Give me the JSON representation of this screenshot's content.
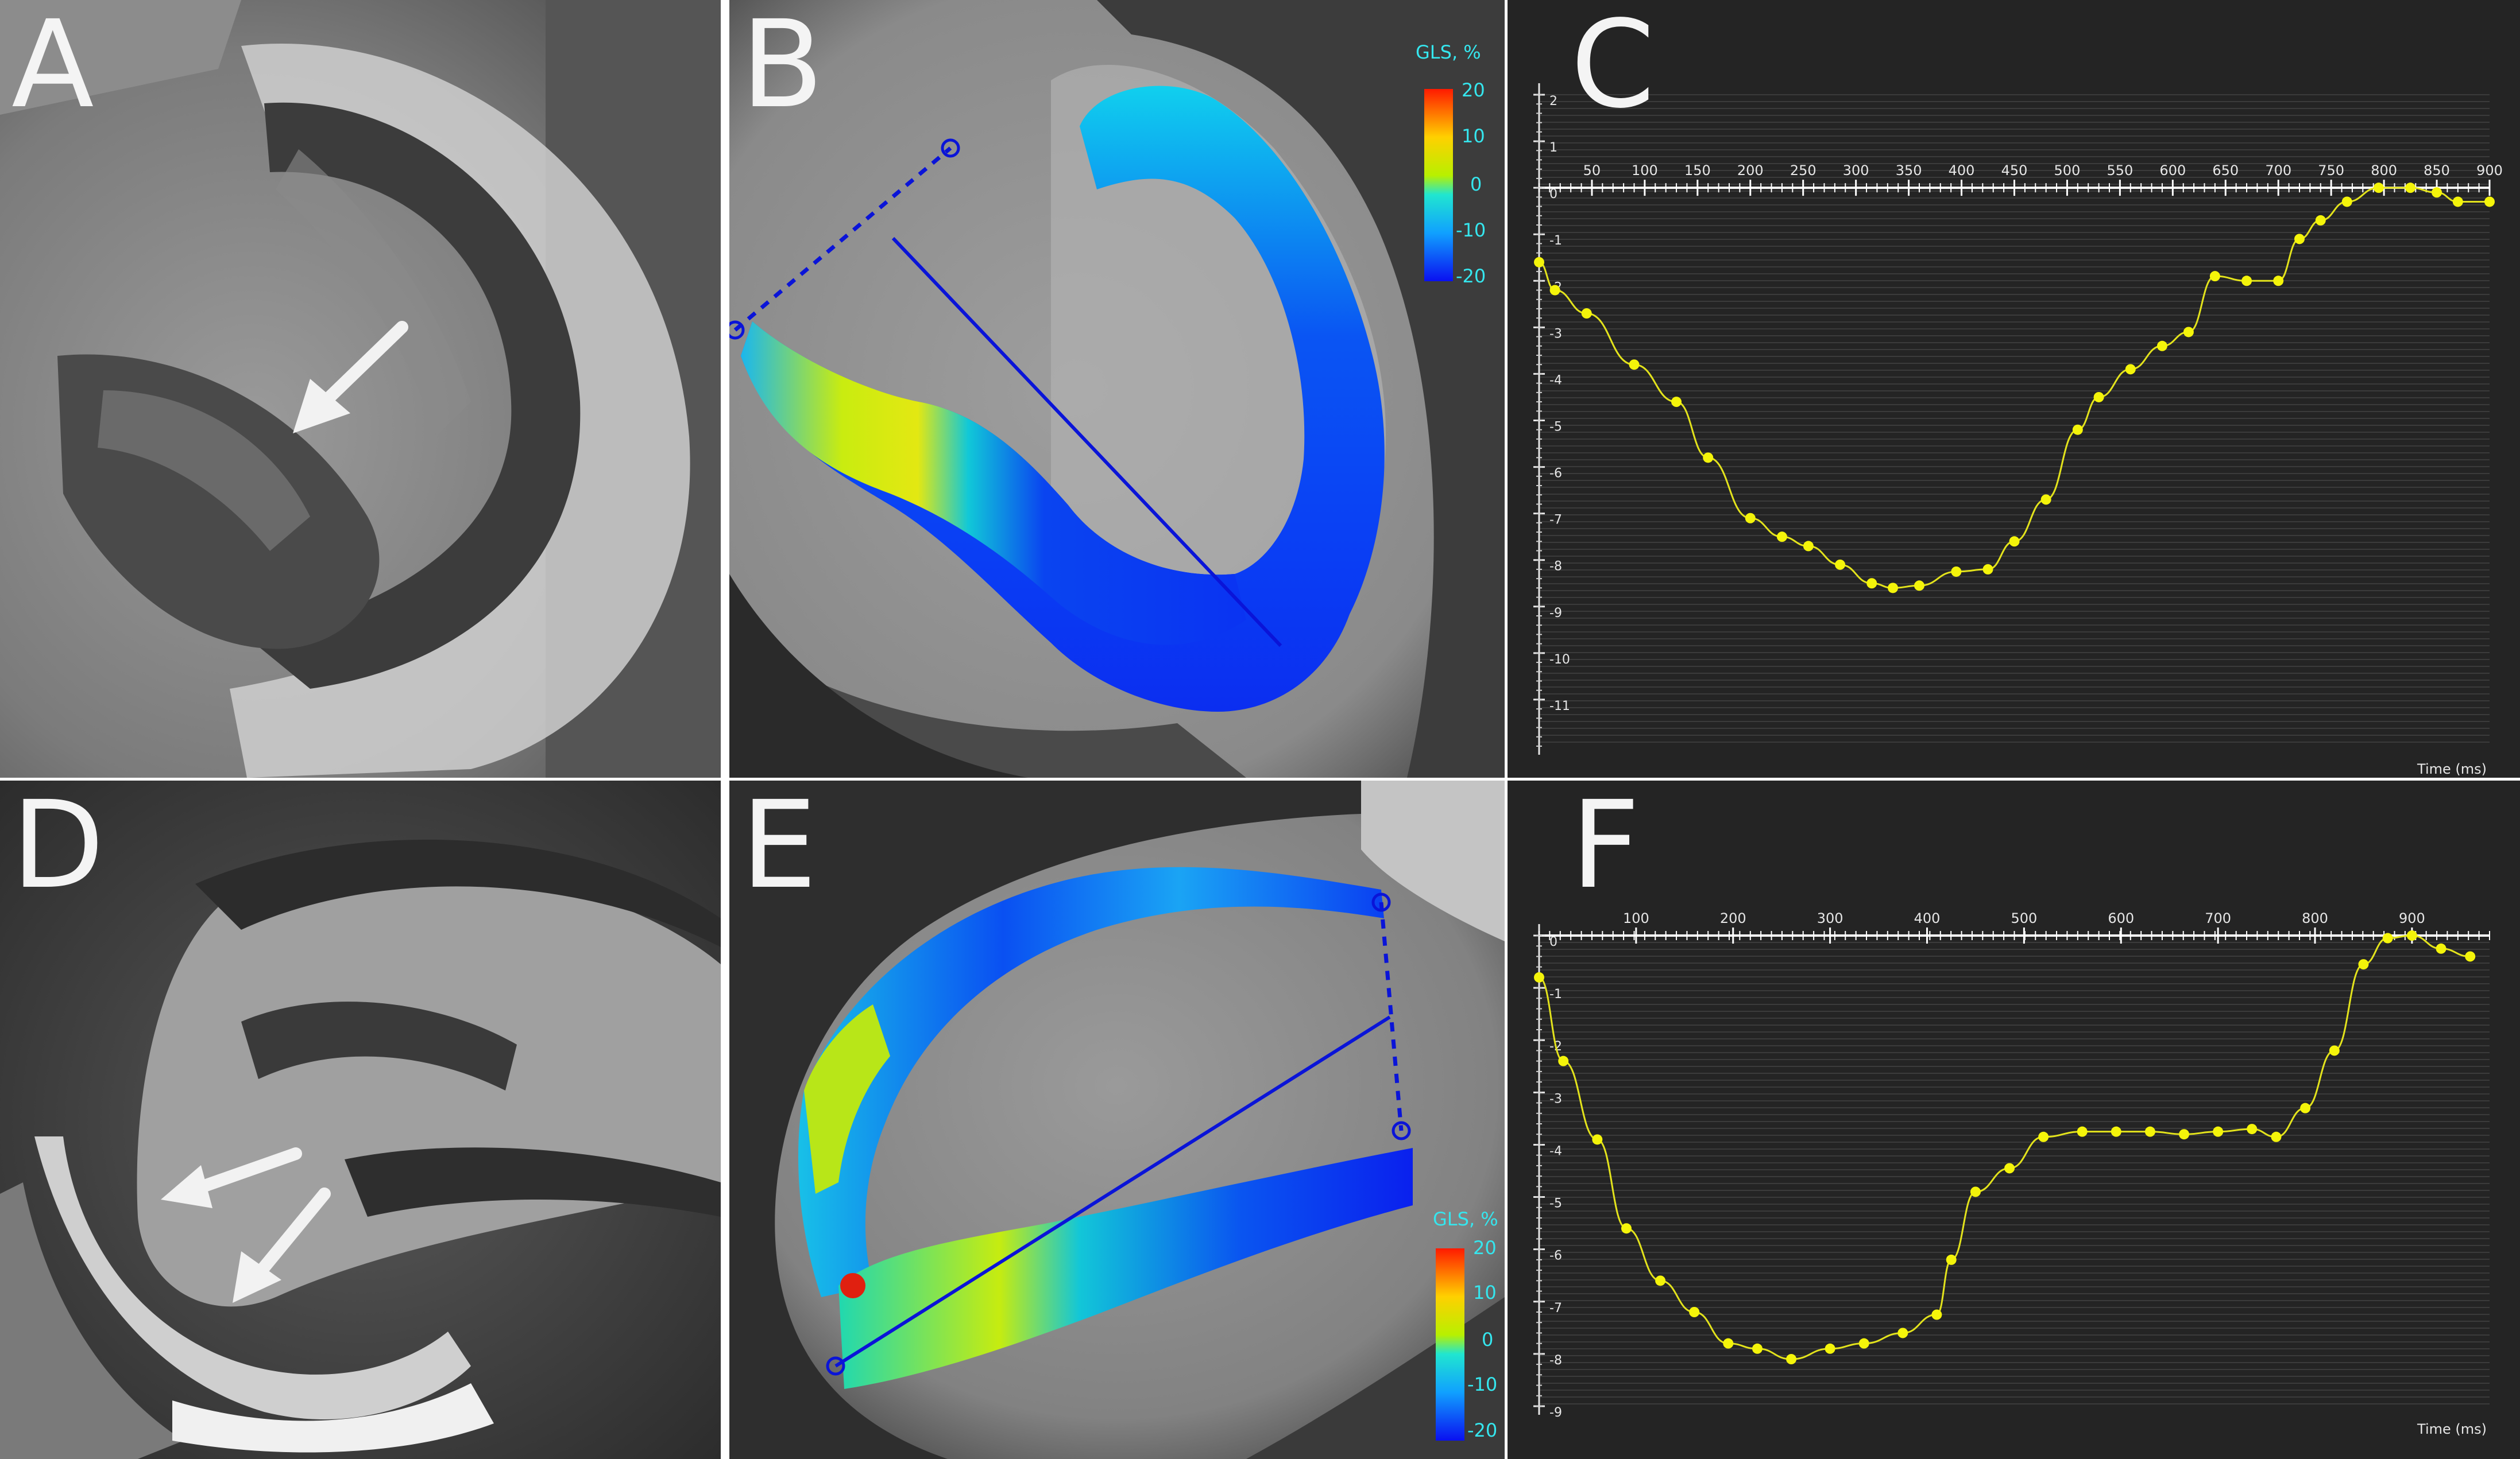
{
  "panels": {
    "a": {
      "letter": "A"
    },
    "b": {
      "letter": "B"
    },
    "c": {
      "letter": "C"
    },
    "d": {
      "letter": "D"
    },
    "e": {
      "letter": "E"
    },
    "f": {
      "letter": "F"
    }
  },
  "legend_b": {
    "title": "GLS, %",
    "ticks": [
      "20",
      "10",
      "0",
      "-10",
      "-20"
    ]
  },
  "legend_e": {
    "title": "GLS, %",
    "ticks": [
      "20",
      "10",
      "0",
      "-10",
      "-20"
    ]
  },
  "colors": {
    "strain_line": "#0a14d8",
    "trace": "#e3e31c",
    "legend_text": "#35e6ee",
    "graph_bg": "#242424"
  },
  "chart_data": [
    {
      "panel": "C",
      "type": "line",
      "xlabel": "Time (ms)",
      "xlim": [
        0,
        900
      ],
      "ylim": [
        -12,
        2
      ],
      "x_ticks": [
        50,
        100,
        150,
        200,
        250,
        300,
        350,
        400,
        450,
        500,
        550,
        600,
        650,
        700,
        750,
        800,
        850,
        900
      ],
      "y_ticks": [
        2,
        1,
        0,
        -1,
        -2,
        -3,
        -4,
        -5,
        -6,
        -7,
        -8,
        -9,
        -10,
        -11
      ],
      "series": [
        {
          "x": [
            0,
            15,
            45,
            90,
            130,
            160,
            200,
            230,
            255,
            285,
            315,
            335,
            360,
            395,
            425,
            450,
            480,
            510,
            530,
            560,
            590,
            615,
            640,
            670,
            700,
            720,
            740,
            765,
            795,
            825,
            850,
            870,
            900
          ],
          "y": [
            -1.6,
            -2.2,
            -2.7,
            -3.8,
            -4.6,
            -5.8,
            -7.1,
            -7.5,
            -7.7,
            -8.1,
            -8.5,
            -8.6,
            -8.55,
            -8.25,
            -8.2,
            -7.6,
            -6.7,
            -5.2,
            -4.5,
            -3.9,
            -3.4,
            -3.1,
            -1.9,
            -2.0,
            -2.0,
            -1.1,
            -0.7,
            -0.3,
            0.0,
            0.0,
            -0.1,
            -0.3,
            -0.3
          ]
        }
      ]
    },
    {
      "panel": "F",
      "type": "line",
      "xlabel": "Time (ms)",
      "xlim": [
        0,
        980
      ],
      "ylim": [
        -9,
        0
      ],
      "x_ticks": [
        100,
        200,
        300,
        400,
        500,
        600,
        700,
        800,
        900
      ],
      "y_ticks": [
        0,
        -1,
        -2,
        -3,
        -4,
        -5,
        -6,
        -7,
        -8,
        -9
      ],
      "series": [
        {
          "x": [
            0,
            25,
            60,
            90,
            125,
            160,
            195,
            225,
            260,
            300,
            335,
            375,
            410,
            425,
            450,
            485,
            520,
            560,
            595,
            630,
            665,
            700,
            735,
            760,
            790,
            820,
            850,
            875,
            900,
            930,
            960
          ],
          "y": [
            -0.8,
            -2.4,
            -3.9,
            -5.6,
            -6.6,
            -7.2,
            -7.8,
            -7.9,
            -8.1,
            -7.9,
            -7.8,
            -7.6,
            -7.25,
            -6.2,
            -4.9,
            -4.45,
            -3.85,
            -3.75,
            -3.75,
            -3.75,
            -3.8,
            -3.75,
            -3.7,
            -3.85,
            -3.3,
            -2.2,
            -0.55,
            -0.05,
            0.0,
            -0.25,
            -0.4
          ]
        }
      ]
    }
  ]
}
